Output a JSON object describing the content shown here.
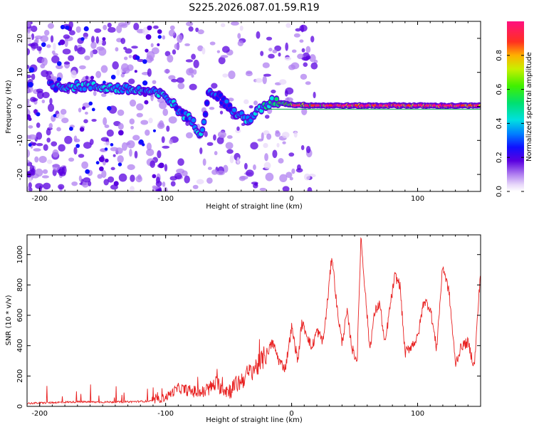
{
  "title": "S225.2026.087.01.59.R19",
  "chart_data": [
    {
      "type": "heatmap",
      "name": "spectrogram",
      "xlabel": "Height of straight line (km)",
      "ylabel": "Frequency (Hz)",
      "xlim": [
        -210,
        150
      ],
      "ylim": [
        -25,
        25
      ],
      "xticks": [
        -200,
        -100,
        0,
        100
      ],
      "yticks": [
        -20,
        -10,
        0,
        10,
        20
      ],
      "colorbar": {
        "label": "Normalized spectral amplitude",
        "range": [
          0,
          1
        ],
        "ticks": [
          "0.0",
          "0.2",
          "0.4",
          "0.6",
          "0.8"
        ],
        "tick_values": [
          0.0,
          0.2,
          0.4,
          0.6,
          0.8
        ]
      },
      "ridge": [
        {
          "x": -190,
          "y": 6,
          "v": 0.3
        },
        {
          "x": -175,
          "y": 6,
          "v": 0.35
        },
        {
          "x": -160,
          "y": 6,
          "v": 0.3
        },
        {
          "x": -145,
          "y": 5.5,
          "v": 0.35
        },
        {
          "x": -130,
          "y": 5,
          "v": 0.35
        },
        {
          "x": -115,
          "y": 4.5,
          "v": 0.3
        },
        {
          "x": -100,
          "y": 3,
          "v": 0.35
        },
        {
          "x": -90,
          "y": -1,
          "v": 0.3
        },
        {
          "x": -80,
          "y": -4,
          "v": 0.3
        },
        {
          "x": -72,
          "y": -8,
          "v": 0.3
        },
        {
          "x": -65,
          "y": 5,
          "v": 0.25
        },
        {
          "x": -55,
          "y": 2,
          "v": 0.25
        },
        {
          "x": -45,
          "y": -2,
          "v": 0.3
        },
        {
          "x": -35,
          "y": -4,
          "v": 0.3
        },
        {
          "x": -25,
          "y": -1,
          "v": 0.35
        },
        {
          "x": -15,
          "y": 1.5,
          "v": 0.4
        },
        {
          "x": 0,
          "y": 0.5,
          "v": 0.6
        },
        {
          "x": 20,
          "y": 0.3,
          "v": 0.75
        },
        {
          "x": 50,
          "y": 0.2,
          "v": 0.8
        },
        {
          "x": 80,
          "y": 0.3,
          "v": 0.75
        },
        {
          "x": 110,
          "y": 0.2,
          "v": 0.8
        },
        {
          "x": 145,
          "y": 0.2,
          "v": 0.8
        }
      ]
    },
    {
      "type": "line",
      "name": "snr",
      "xlabel": "Height of straight line (km)",
      "ylabel": "SNR (10 * v/v)",
      "xlim": [
        -210,
        150
      ],
      "ylim": [
        0,
        1130
      ],
      "xticks": [
        -200,
        -100,
        0,
        100
      ],
      "yticks": [
        0,
        200,
        400,
        600,
        800,
        1000
      ],
      "color": "#e82020",
      "series": [
        {
          "name": "SNR",
          "x": [
            -210,
            -190,
            -170,
            -150,
            -130,
            -110,
            -100,
            -90,
            -80,
            -70,
            -60,
            -50,
            -40,
            -30,
            -25,
            -20,
            -15,
            -10,
            -5,
            0,
            5,
            8,
            12,
            16,
            20,
            25,
            28,
            32,
            36,
            40,
            44,
            48,
            52,
            55,
            58,
            62,
            66,
            70,
            74,
            78,
            82,
            86,
            90,
            95,
            100,
            105,
            110,
            115,
            120,
            125,
            130,
            135,
            140,
            145,
            150
          ],
          "y": [
            20,
            25,
            30,
            28,
            30,
            35,
            60,
            120,
            100,
            90,
            150,
            100,
            170,
            250,
            280,
            350,
            420,
            300,
            250,
            520,
            300,
            550,
            480,
            380,
            500,
            430,
            650,
            1000,
            650,
            420,
            620,
            380,
            300,
            1120,
            800,
            380,
            620,
            680,
            400,
            650,
            860,
            800,
            350,
            400,
            450,
            700,
            650,
            380,
            930,
            750,
            280,
            400,
            420,
            260,
            900
          ]
        }
      ]
    }
  ]
}
